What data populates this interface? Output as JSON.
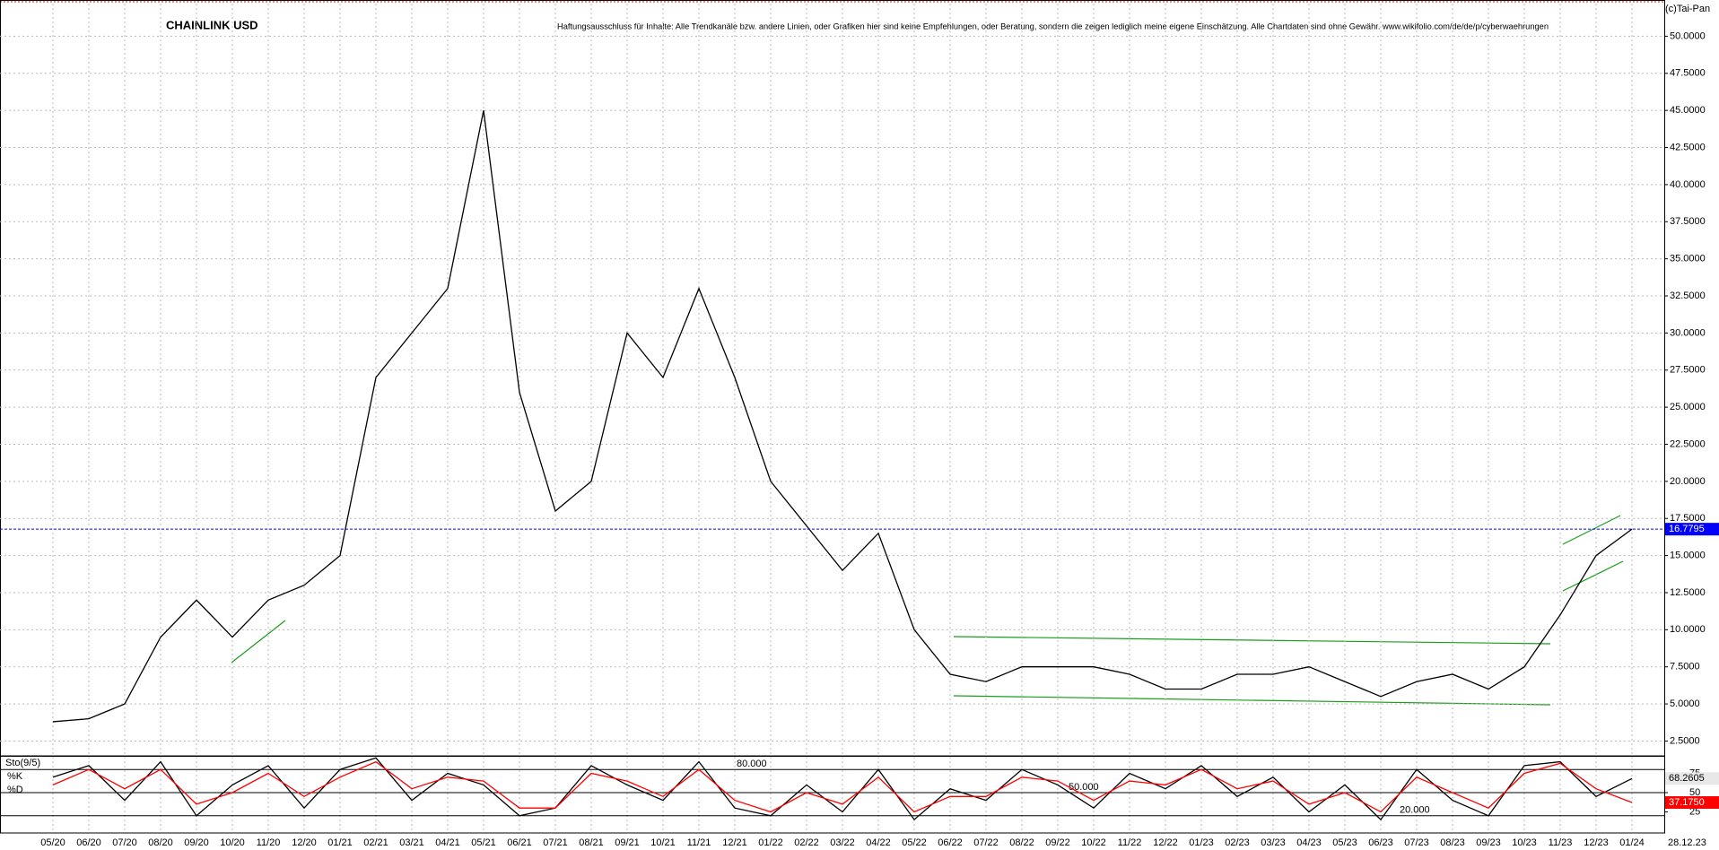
{
  "chart_data": [
    {
      "type": "line",
      "title": "CHAINLINK USD",
      "subtitle": "Haftungsausschluss für Inhalte: Alle Trendkanäle bzw. andere Linien, oder Grafiken hier sind keine Empfehlungen, oder Beratung, sondern die zeigen lediglich meine eigene Einschätzung. Alle Chartdaten sind ohne Gewähr.  www.wikifolio.com/de/de/p/cyberwaehrungen",
      "source": "(c)Tai-Pan",
      "date_label": "28.12.23",
      "categories": [
        "05/20",
        "06/20",
        "07/20",
        "08/20",
        "09/20",
        "10/20",
        "11/20",
        "12/20",
        "01/21",
        "02/21",
        "03/21",
        "04/21",
        "05/21",
        "06/21",
        "07/21",
        "08/21",
        "09/21",
        "10/21",
        "11/21",
        "12/21",
        "01/22",
        "02/22",
        "03/22",
        "04/22",
        "05/22",
        "06/22",
        "07/22",
        "08/22",
        "09/22",
        "10/22",
        "11/22",
        "12/22",
        "01/23",
        "02/23",
        "03/23",
        "04/23",
        "05/23",
        "06/23",
        "07/23",
        "08/23",
        "09/23",
        "10/23",
        "11/23",
        "12/23",
        "01/24"
      ],
      "values": [
        3.8,
        4.0,
        5.0,
        9.5,
        12.0,
        9.5,
        12.0,
        13.0,
        15.0,
        27.0,
        30.0,
        33.0,
        45.0,
        26.0,
        18.0,
        20.0,
        30.0,
        27.0,
        33.0,
        27.0,
        20.0,
        17.0,
        14.0,
        16.5,
        10.0,
        7.0,
        6.5,
        7.5,
        7.5,
        7.5,
        7.0,
        6.0,
        6.0,
        7.0,
        7.0,
        7.5,
        6.5,
        5.5,
        6.5,
        7.0,
        6.0,
        7.5,
        11.0,
        15.0,
        16.7795
      ],
      "color": "#000000",
      "ylim": [
        1.5,
        52.2
      ],
      "yticks": [
        {
          "value": 2.5,
          "label": "2.5000"
        },
        {
          "value": 5,
          "label": "5.0000"
        },
        {
          "value": 7.5,
          "label": "7.5000"
        },
        {
          "value": 10,
          "label": "10.0000"
        },
        {
          "value": 12.5,
          "label": "12.5000"
        },
        {
          "value": 15,
          "label": "15.0000"
        },
        {
          "value": 17.5,
          "label": "17.5000"
        },
        {
          "value": 20,
          "label": "20.0000"
        },
        {
          "value": 22.5,
          "label": "22.5000"
        },
        {
          "value": 25,
          "label": "25.0000"
        },
        {
          "value": 27.5,
          "label": "27.5000"
        },
        {
          "value": 30,
          "label": "30.0000"
        },
        {
          "value": 32.5,
          "label": "32.5000"
        },
        {
          "value": 35,
          "label": "35.0000"
        },
        {
          "value": 37.5,
          "label": "37.5000"
        },
        {
          "value": 40,
          "label": "40.0000"
        },
        {
          "value": 42.5,
          "label": "42.5000"
        },
        {
          "value": 45,
          "label": "45.0000"
        },
        {
          "value": 47.5,
          "label": "47.5000"
        },
        {
          "value": 50,
          "label": "50.0000"
        }
      ],
      "grid": true
    },
    {
      "type": "line",
      "title": "Sto(9/5)",
      "series": [
        {
          "name": "%K",
          "color": "#000000",
          "values": [
            70,
            85,
            40,
            90,
            20,
            60,
            85,
            30,
            80,
            95,
            40,
            75,
            60,
            20,
            30,
            85,
            60,
            40,
            90,
            30,
            20,
            60,
            25,
            80,
            15,
            55,
            40,
            80,
            60,
            30,
            75,
            55,
            85,
            45,
            70,
            25,
            60,
            15,
            80,
            40,
            20,
            85,
            90,
            45,
            68.2605
          ]
        },
        {
          "name": "%D",
          "color": "#ff0000",
          "values": [
            60,
            80,
            55,
            80,
            35,
            50,
            75,
            45,
            70,
            90,
            55,
            70,
            65,
            30,
            30,
            75,
            65,
            45,
            80,
            40,
            25,
            50,
            35,
            70,
            25,
            45,
            45,
            70,
            65,
            40,
            65,
            60,
            80,
            55,
            65,
            35,
            50,
            25,
            70,
            50,
            30,
            75,
            88,
            55,
            37.175
          ],
          "value_labels": [
            null,
            null,
            null,
            null,
            null,
            null,
            null,
            null,
            null,
            null,
            null,
            null,
            null,
            null,
            null,
            null,
            null,
            null,
            null,
            null,
            null,
            null,
            null,
            null,
            null,
            null,
            null,
            null,
            null,
            null,
            null,
            null,
            null,
            null,
            null,
            null,
            null,
            null,
            null,
            null,
            null,
            null,
            null,
            null,
            "37.1750"
          ]
        }
      ],
      "ylim": [
        0,
        100
      ],
      "yticks": [
        25,
        50,
        75
      ],
      "levels": [
        {
          "value": 80,
          "label": "80.000"
        },
        {
          "value": 50,
          "label": "50.000"
        },
        {
          "value": 20,
          "label": "20.000"
        }
      ],
      "grid": true
    }
  ]
}
